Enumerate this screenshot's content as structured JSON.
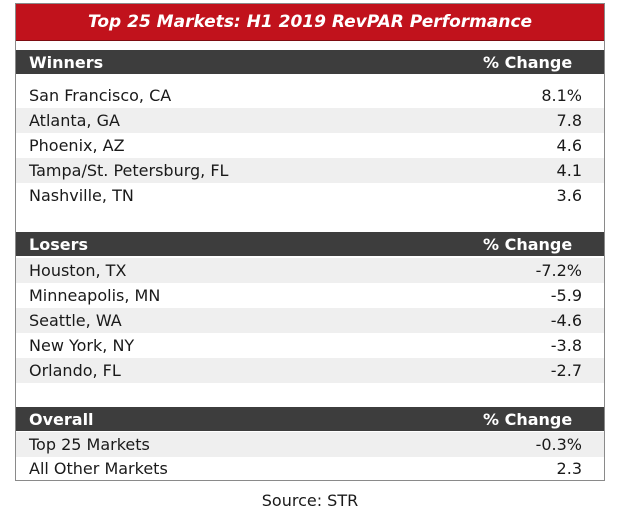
{
  "chart_data": {
    "type": "table",
    "title": "Top 25 Markets: H1 2019 RevPAR Performance",
    "sections": [
      {
        "header": "Winners",
        "change_label": "% Change",
        "rows": [
          {
            "market": "San Francisco, CA",
            "change": "8.1%",
            "value": 8.1
          },
          {
            "market": "Atlanta, GA",
            "change": "7.8",
            "value": 7.8
          },
          {
            "market": "Phoenix, AZ",
            "change": "4.6",
            "value": 4.6
          },
          {
            "market": "Tampa/St. Petersburg, FL",
            "change": "4.1",
            "value": 4.1
          },
          {
            "market": "Nashville, TN",
            "change": "3.6",
            "value": 3.6
          }
        ]
      },
      {
        "header": "Losers",
        "change_label": "% Change",
        "rows": [
          {
            "market": "Houston, TX",
            "change": "-7.2%",
            "value": -7.2
          },
          {
            "market": "Minneapolis, MN",
            "change": "-5.9",
            "value": -5.9
          },
          {
            "market": "Seattle, WA",
            "change": "-4.6",
            "value": -4.6
          },
          {
            "market": "New York, NY",
            "change": "-3.8",
            "value": -3.8
          },
          {
            "market": "Orlando, FL",
            "change": "-2.7",
            "value": -2.7
          }
        ]
      },
      {
        "header": "Overall",
        "change_label": "% Change",
        "rows": [
          {
            "market": "Top 25 Markets",
            "change": "-0.3%",
            "value": -0.3
          },
          {
            "market": "All Other Markets",
            "change": "2.3",
            "value": 2.3
          }
        ]
      }
    ],
    "source": "Source: STR"
  },
  "colors": {
    "title_background": "#c1121c",
    "header_background": "#3d3d3d",
    "shaded_row": "#efefef"
  }
}
